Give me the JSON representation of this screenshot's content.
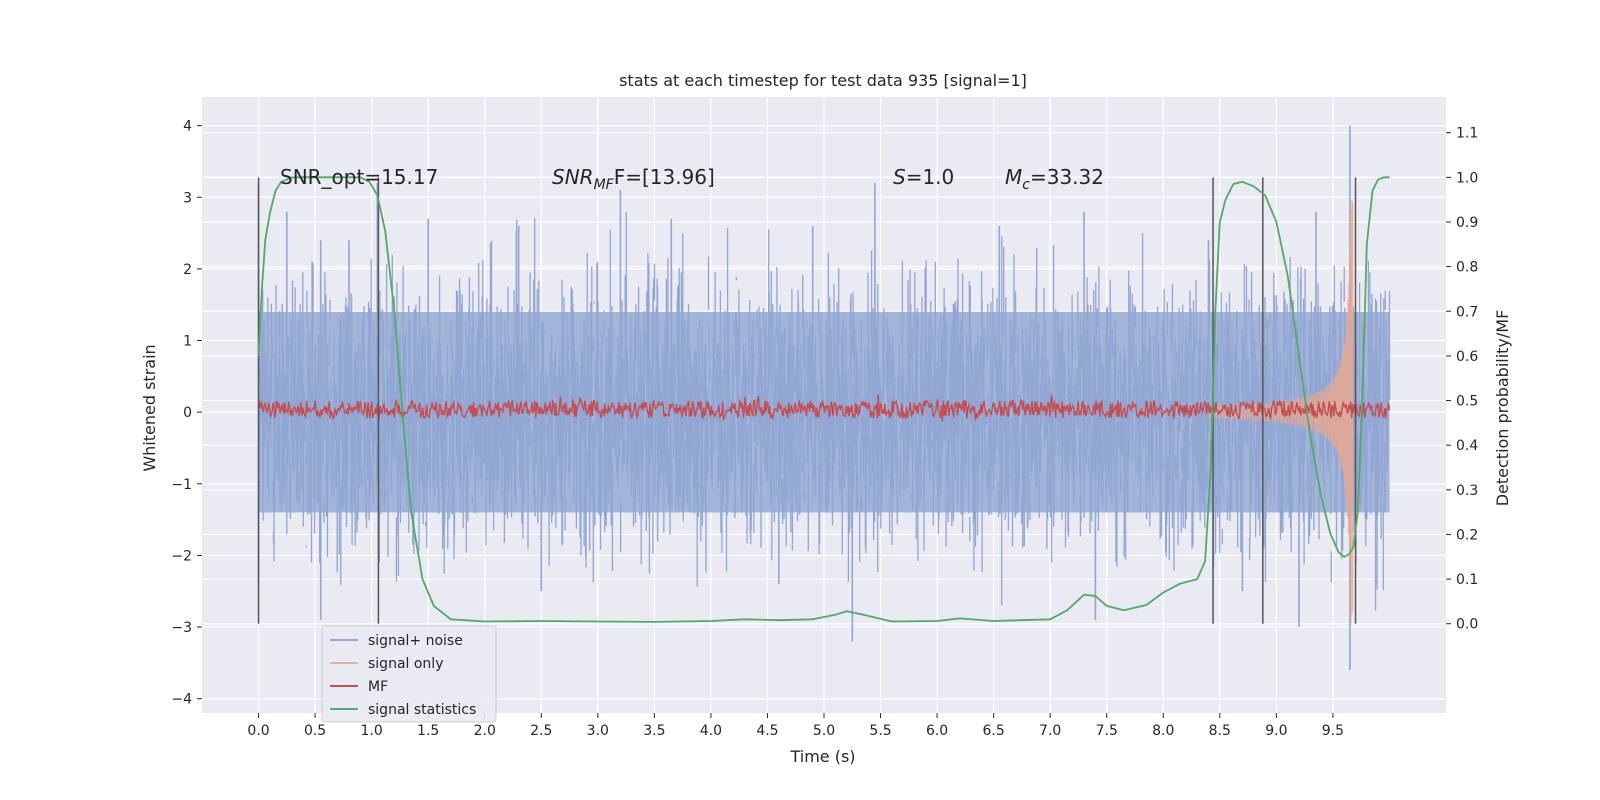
{
  "chart_data": {
    "type": "line",
    "title": "stats at each timestep for test data 935 [signal=1]",
    "xlabel": "Time (s)",
    "ylabel": "Whitened strain",
    "ylabel_right": "Detection probability/MF",
    "xlim": [
      -0.5,
      10.5
    ],
    "ylim": [
      -4.2,
      4.4
    ],
    "ylim_right": [
      -0.2,
      1.18
    ],
    "x_ticks": [
      "0.0",
      "0.5",
      "1.0",
      "1.5",
      "2.0",
      "2.5",
      "3.0",
      "3.5",
      "4.0",
      "4.5",
      "5.0",
      "5.5",
      "6.0",
      "6.5",
      "7.0",
      "7.5",
      "8.0",
      "8.5",
      "9.0",
      "9.5"
    ],
    "y_ticks": [
      "4",
      "3",
      "2",
      "1",
      "0",
      "−1",
      "−2",
      "−3",
      "−4"
    ],
    "y_ticks_right": [
      "1.1",
      "1.0",
      "0.9",
      "0.8",
      "0.7",
      "0.6",
      "0.5",
      "0.4",
      "0.3",
      "0.2",
      "0.1",
      "0.0"
    ],
    "annotations": {
      "snr_opt": "SNR_opt=15.17",
      "snr_mf_main": "SNR",
      "snr_mf_sub": "MF",
      "snr_mf_rest": "F=[13.96]",
      "s_main": "S",
      "s_rest": "=1.0",
      "mc_main": "M",
      "mc_sub": "c",
      "mc_rest": "=33.32"
    },
    "legend": {
      "placement": "lower-left",
      "entries": [
        {
          "label": "signal+ noise",
          "color": "#92a6d3"
        },
        {
          "label": "signal only",
          "color": "#e8b09a"
        },
        {
          "label": "MF",
          "color": "#c44e52"
        },
        {
          "label": "signal statistics",
          "color": "#55a868"
        }
      ]
    },
    "series": [
      {
        "name": "signal+ noise",
        "axis": "left",
        "x_range": [
          0.0,
          10.0
        ],
        "band_typical": [
          -1.4,
          1.4
        ],
        "peaks_up": [
          [
            0.0,
            3.2
          ],
          [
            0.25,
            2.8
          ],
          [
            0.55,
            2.4
          ],
          [
            0.8,
            2.4
          ],
          [
            1.05,
            3.2
          ],
          [
            1.5,
            2.7
          ],
          [
            2.3,
            2.6
          ],
          [
            3.2,
            3.1
          ],
          [
            3.65,
            2.7
          ],
          [
            4.9,
            2.6
          ],
          [
            5.45,
            3.2
          ],
          [
            6.55,
            2.6
          ],
          [
            7.3,
            2.8
          ],
          [
            8.4,
            2.4
          ],
          [
            9.35,
            2.8
          ],
          [
            9.65,
            4.0
          ]
        ],
        "peaks_down": [
          [
            0.0,
            -2.4
          ],
          [
            0.55,
            -2.9
          ],
          [
            2.5,
            -2.5
          ],
          [
            4.6,
            -2.4
          ],
          [
            5.25,
            -3.2
          ],
          [
            7.4,
            -2.9
          ],
          [
            8.7,
            -2.5
          ],
          [
            9.2,
            -3.0
          ],
          [
            9.65,
            -3.6
          ]
        ]
      },
      {
        "name": "signal only",
        "axis": "left",
        "chirp_start": 8.4,
        "merger_time": 9.68,
        "peak_amplitude": 3.0
      },
      {
        "name": "MF",
        "axis": "right",
        "x_range": [
          0.0,
          10.0
        ],
        "level": 0.48,
        "noise": 0.02
      },
      {
        "name": "signal statistics",
        "axis": "right",
        "x": [
          0.0,
          0.03,
          0.06,
          0.1,
          0.15,
          0.2,
          0.3,
          0.5,
          0.7,
          0.9,
          0.98,
          1.05,
          1.12,
          1.2,
          1.28,
          1.35,
          1.45,
          1.55,
          1.7,
          2.0,
          2.5,
          3.0,
          3.5,
          4.0,
          4.3,
          4.6,
          4.9,
          5.1,
          5.2,
          5.35,
          5.6,
          6.0,
          6.2,
          6.5,
          7.0,
          7.15,
          7.3,
          7.4,
          7.5,
          7.65,
          7.85,
          8.0,
          8.15,
          8.3,
          8.37,
          8.42,
          8.46,
          8.5,
          8.55,
          8.62,
          8.7,
          8.8,
          8.9,
          9.0,
          9.1,
          9.2,
          9.3,
          9.4,
          9.48,
          9.55,
          9.6,
          9.64,
          9.68,
          9.72,
          9.76,
          9.8,
          9.85,
          9.9,
          9.95,
          10.0
        ],
        "y": [
          0.6,
          0.75,
          0.86,
          0.92,
          0.97,
          0.99,
          1.0,
          1.0,
          1.0,
          1.0,
          0.99,
          0.96,
          0.88,
          0.7,
          0.45,
          0.25,
          0.1,
          0.04,
          0.01,
          0.005,
          0.006,
          0.005,
          0.004,
          0.006,
          0.01,
          0.008,
          0.01,
          0.02,
          0.028,
          0.02,
          0.005,
          0.006,
          0.012,
          0.006,
          0.01,
          0.03,
          0.065,
          0.062,
          0.04,
          0.03,
          0.042,
          0.07,
          0.09,
          0.1,
          0.14,
          0.35,
          0.7,
          0.9,
          0.95,
          0.985,
          0.99,
          0.98,
          0.96,
          0.9,
          0.78,
          0.6,
          0.42,
          0.28,
          0.2,
          0.16,
          0.15,
          0.155,
          0.17,
          0.25,
          0.5,
          0.85,
          0.97,
          0.995,
          1.0,
          1.0
        ]
      }
    ],
    "vertical_markers": [
      0.0,
      1.06,
      8.44,
      8.88,
      9.7
    ],
    "grid": true
  }
}
